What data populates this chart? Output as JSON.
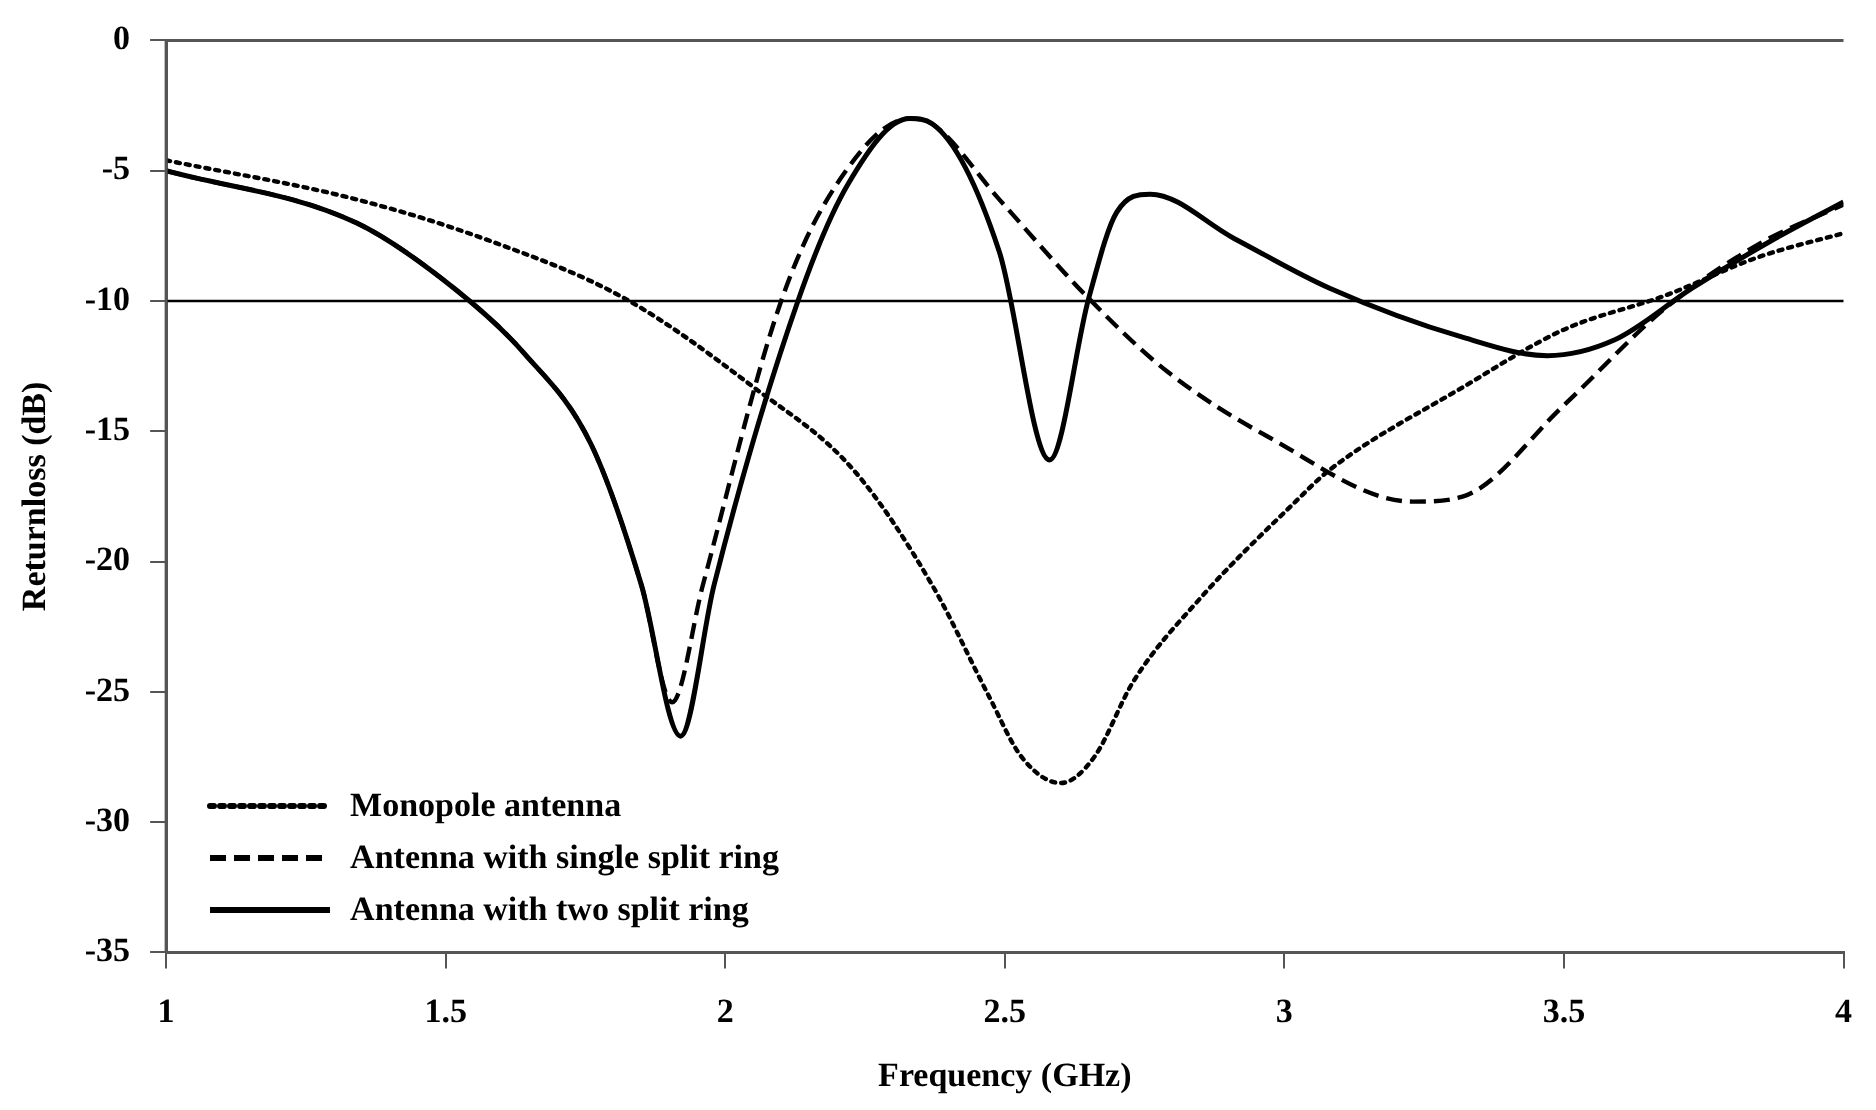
{
  "chart_data": {
    "type": "line",
    "xlabel": "Frequency (GHz)",
    "ylabel": "Returnloss (dB)",
    "xlim": [
      1,
      4
    ],
    "xticks": [
      1,
      1.5,
      2,
      2.5,
      3,
      3.5,
      4
    ],
    "ylim": [
      -35,
      0
    ],
    "yticks": [
      -35,
      -30,
      -25,
      -20,
      -15,
      -10,
      -5,
      0
    ],
    "grid": false,
    "legend": "bottom left",
    "marker": "none",
    "ref_lines": [
      {
        "axis": "y",
        "value": -10,
        "color": "#000000"
      }
    ],
    "series": [
      {
        "name": "Monopole antenna",
        "color": "#000000",
        "line_style": "dotted",
        "x": [
          1,
          1.34,
          1.58,
          1.82,
          2.05,
          2.23,
          2.37,
          2.47,
          2.53,
          2.6,
          2.66,
          2.73,
          2.85,
          3.02,
          3.08,
          3.32,
          3.5,
          3.68,
          3.85,
          4
        ],
        "values": [
          -4.6,
          -6.1,
          -7.7,
          -9.9,
          -13.3,
          -16.5,
          -20.9,
          -25.1,
          -27.5,
          -28.5,
          -27.5,
          -24.6,
          -21.4,
          -17.7,
          -16.5,
          -13.3,
          -11.1,
          -9.8,
          -8.3,
          -7.4
        ]
      },
      {
        "name": "Antenna with single split ring",
        "color": "#000000",
        "line_style": "dashed",
        "x": [
          1,
          1.34,
          1.52,
          1.64,
          1.76,
          1.85,
          1.905,
          1.96,
          2.1,
          2.2,
          2.33,
          2.37,
          2.49,
          2.65,
          2.79,
          2.97,
          3.23,
          3.32,
          3.5,
          3.68,
          3.85,
          4
        ],
        "values": [
          -5,
          -7,
          -9.6,
          -12,
          -15.5,
          -20.9,
          -25.4,
          -20.9,
          -10,
          -5.5,
          -3,
          -3.2,
          -6.1,
          -9.9,
          -12.7,
          -15.2,
          -17.7,
          -17.5,
          -14,
          -10.3,
          -7.8,
          -6.3
        ]
      },
      {
        "name": "Antenna with two split ring",
        "color": "#000000",
        "line_style": "solid",
        "x": [
          1,
          1.34,
          1.52,
          1.64,
          1.76,
          1.85,
          1.92,
          1.98,
          2.13,
          2.22,
          2.33,
          2.37,
          2.49,
          2.58,
          2.65,
          2.7,
          2.76,
          2.91,
          3.08,
          3.32,
          3.47,
          3.59,
          3.73,
          3.87,
          4
        ],
        "values": [
          -5,
          -7,
          -9.6,
          -12,
          -15.5,
          -20.9,
          -26.7,
          -20.9,
          -10,
          -5.5,
          -3,
          -3.2,
          -8.1,
          -16.1,
          -9.9,
          -6.6,
          -5.9,
          -7.6,
          -9.5,
          -11.4,
          -12.1,
          -11.5,
          -9.5,
          -7.7,
          -6.2
        ]
      }
    ]
  }
}
